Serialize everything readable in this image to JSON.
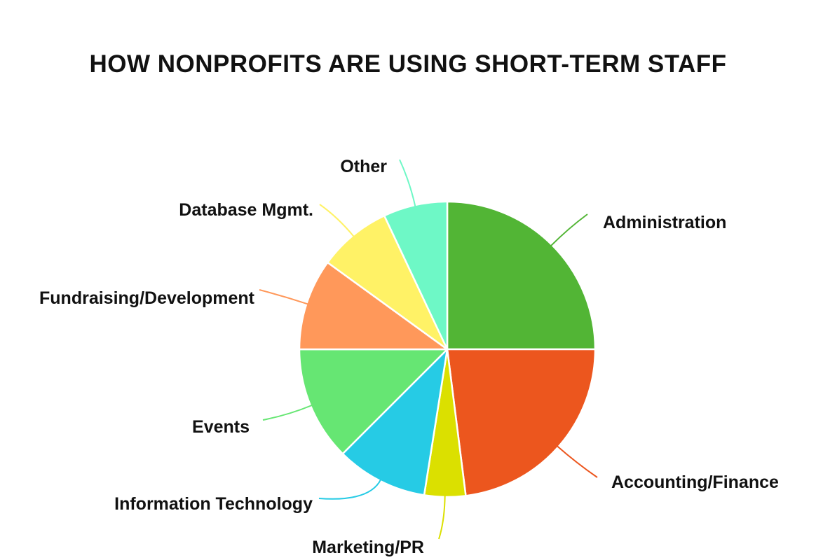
{
  "chart_data": {
    "type": "pie",
    "title": "HOW NONPROFITS ARE USING SHORT-TERM STAFF",
    "start_angle_deg": 0,
    "direction": "clockwise",
    "slices": [
      {
        "label": "Administration",
        "value": 25,
        "color": "#52B535"
      },
      {
        "label": "Accounting/Finance",
        "value": 23,
        "color": "#EC561E"
      },
      {
        "label": "Marketing/PR",
        "value": 4.5,
        "color": "#DBE000"
      },
      {
        "label": "Information Technology",
        "value": 10,
        "color": "#26CBE5"
      },
      {
        "label": "Events",
        "value": 12.5,
        "color": "#66E673"
      },
      {
        "label": "Fundraising/Development",
        "value": 10,
        "color": "#FF985A"
      },
      {
        "label": "Database Mgmt.",
        "value": 8,
        "color": "#FFF266"
      },
      {
        "label": "Other",
        "value": 7,
        "color": "#6EF8C6"
      }
    ]
  }
}
